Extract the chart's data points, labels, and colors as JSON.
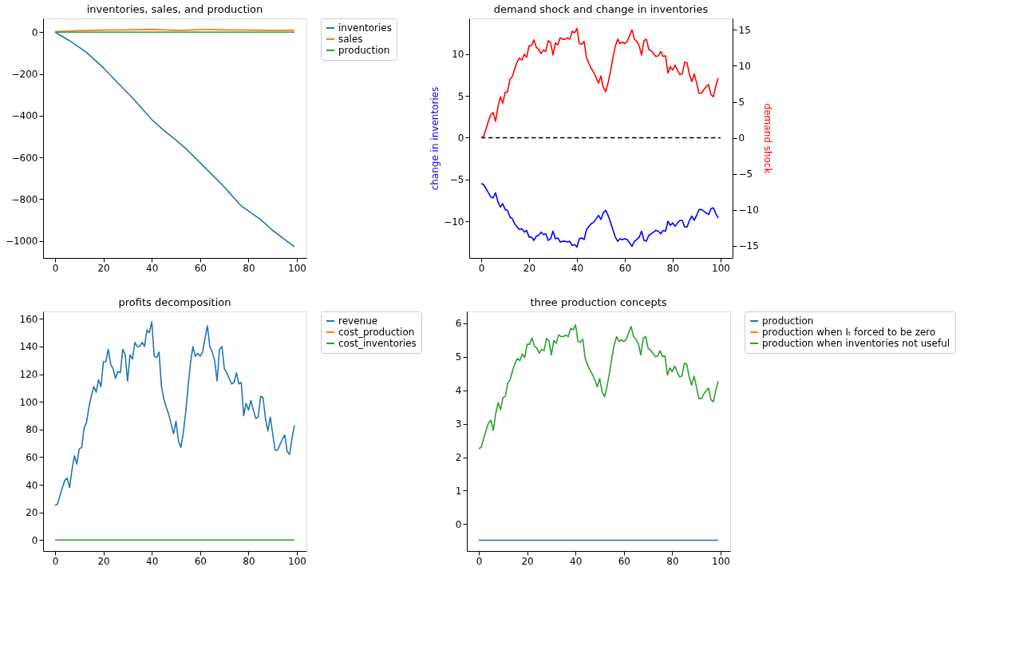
{
  "chart_data": [
    {
      "type": "line",
      "title": "inventories, sales, and production",
      "xlim": [
        -4.95,
        103.95
      ],
      "xticks": [
        0,
        20,
        40,
        60,
        80,
        100
      ],
      "ylim": [
        -1082,
        66
      ],
      "yticks": [
        -1000,
        -800,
        -600,
        -400,
        -200,
        0
      ],
      "grid": false,
      "legend": "top right",
      "marker": "none",
      "series": [
        {
          "name": "inventories",
          "color": "#1f77b4",
          "x": [
            0,
            6,
            13,
            20,
            26,
            32,
            40,
            45,
            50,
            54,
            56,
            62,
            69,
            77,
            85,
            90,
            99
          ],
          "values": [
            0,
            -41,
            -97,
            -171,
            -244,
            -315,
            -419,
            -471,
            -517,
            -557,
            -580,
            -649,
            -730,
            -833,
            -898,
            -950,
            -1029
          ]
        },
        {
          "name": "sales",
          "color": "#ff7f0e",
          "x": [
            0,
            10,
            20,
            30,
            40,
            50,
            52,
            60,
            63,
            70,
            80,
            90,
            99
          ],
          "values": [
            3,
            7,
            10,
            11,
            13,
            9,
            8,
            12,
            13,
            11,
            10,
            8,
            9
          ]
        },
        {
          "name": "production",
          "color": "#2ca02c",
          "x": [
            0,
            99
          ],
          "values": [
            0,
            0
          ]
        }
      ]
    },
    {
      "type": "line",
      "title": "demand shock and change in inventories",
      "ylabel": "change in inventories",
      "y2label": "demand shock",
      "xlim": [
        -5,
        105
      ],
      "xticks": [
        0,
        20,
        40,
        60,
        80,
        100
      ],
      "ylim": [
        -14.4,
        14.3
      ],
      "yticks": [
        -10,
        -5,
        0,
        5,
        10
      ],
      "y2lim": [
        -16.7,
        16.6
      ],
      "y2ticks": [
        -15,
        -10,
        -5,
        0,
        5,
        10,
        15
      ],
      "grid": false,
      "marker": "none",
      "x": [
        0,
        1,
        2,
        3,
        4,
        5,
        6,
        7,
        8,
        9,
        10,
        11,
        12,
        13,
        14,
        15,
        16,
        17,
        18,
        19,
        20,
        21,
        22,
        23,
        24,
        25,
        26,
        27,
        28,
        29,
        30,
        31,
        32,
        33,
        34,
        35,
        36,
        37,
        38,
        39,
        40,
        41,
        42,
        43,
        44,
        45,
        46,
        47,
        48,
        49,
        50,
        51,
        52,
        53,
        54,
        55,
        56,
        57,
        58,
        59,
        60,
        61,
        62,
        63,
        64,
        65,
        66,
        67,
        68,
        69,
        70,
        71,
        72,
        73,
        74,
        75,
        76,
        77,
        78,
        79,
        80,
        81,
        82,
        83,
        84,
        85,
        86,
        87,
        88,
        89,
        90,
        91,
        92,
        93,
        94,
        95,
        96,
        97,
        98,
        99
      ],
      "series": [
        {
          "color": "#0000ff",
          "values": [
            -5.5,
            -5.6,
            -6.1,
            -6.6,
            -7.1,
            -7.2,
            -6.6,
            -7.7,
            -8.3,
            -7.9,
            -8.6,
            -8.7,
            -9.5,
            -9.7,
            -10.3,
            -10.7,
            -11.0,
            -10.9,
            -11.3,
            -11.1,
            -11.9,
            -11.9,
            -12.3,
            -11.8,
            -11.7,
            -11.3,
            -11.6,
            -11.5,
            -12.3,
            -12.1,
            -11.2,
            -12.1,
            -12.0,
            -12.5,
            -12.4,
            -12.4,
            -12.5,
            -12.4,
            -12.9,
            -12.8,
            -13.1,
            -12.1,
            -12.0,
            -12.2,
            -11.0,
            -10.6,
            -10.3,
            -10.1,
            -9.7,
            -9.3,
            -9.8,
            -9.0,
            -8.7,
            -9.3,
            -10.1,
            -11.0,
            -11.9,
            -12.4,
            -12.1,
            -12.2,
            -12.1,
            -12.2,
            -12.6,
            -13.0,
            -12.4,
            -12.2,
            -11.9,
            -11.2,
            -12.3,
            -12.4,
            -11.7,
            -11.5,
            -11.3,
            -11.1,
            -11.2,
            -11.5,
            -11.1,
            -11.2,
            -10.0,
            -10.5,
            -10.2,
            -10.6,
            -10.2,
            -9.9,
            -9.9,
            -10.7,
            -10.7,
            -9.9,
            -9.4,
            -9.9,
            -9.3,
            -8.6,
            -8.6,
            -8.8,
            -9.0,
            -9.2,
            -8.5,
            -8.4,
            -9.1,
            -9.6
          ]
        },
        {
          "color": "#000000",
          "line_style": "dashed",
          "x": [
            0,
            100
          ],
          "values": [
            0,
            0
          ]
        },
        {
          "color": "#ff0000",
          "axis": "y2",
          "values": [
            0,
            0.2,
            1.2,
            2.3,
            3.2,
            3.5,
            2.3,
            4.3,
            5.7,
            4.8,
            6.3,
            6.4,
            8.1,
            8.5,
            9.6,
            10.5,
            11.1,
            10.8,
            11.6,
            11.2,
            12.8,
            12.8,
            13.6,
            12.6,
            12.3,
            11.7,
            12.2,
            12.0,
            13.5,
            13.2,
            11.5,
            13.2,
            12.9,
            13.9,
            13.7,
            13.7,
            13.9,
            13.7,
            14.8,
            14.6,
            15.2,
            13.1,
            13.0,
            13.4,
            11.1,
            10.3,
            9.6,
            9.1,
            8.4,
            7.6,
            8.6,
            7.0,
            6.4,
            7.6,
            9.2,
            11.1,
            12.7,
            13.7,
            13.1,
            13.3,
            13.1,
            13.4,
            14.2,
            15.0,
            13.7,
            13.4,
            12.8,
            11.5,
            13.5,
            13.7,
            12.3,
            12.1,
            11.7,
            11.3,
            11.4,
            12.0,
            11.3,
            11.4,
            9.0,
            9.9,
            9.4,
            10.1,
            9.4,
            8.8,
            8.9,
            10.5,
            10.4,
            8.8,
            7.8,
            8.9,
            7.6,
            6.2,
            6.2,
            6.7,
            7.1,
            7.4,
            6.0,
            5.7,
            7.2,
            8.3
          ]
        }
      ]
    },
    {
      "type": "line",
      "title": "profits decomposition",
      "xlim": [
        -4.95,
        103.95
      ],
      "xticks": [
        0,
        20,
        40,
        60,
        80,
        100
      ],
      "ylim": [
        -7.9,
        165.4
      ],
      "yticks": [
        0,
        20,
        40,
        60,
        80,
        100,
        120,
        140,
        160
      ],
      "grid": false,
      "legend": "top right",
      "marker": "none",
      "x": [
        0,
        1,
        2,
        3,
        4,
        5,
        6,
        7,
        8,
        9,
        10,
        11,
        12,
        13,
        14,
        15,
        16,
        17,
        18,
        19,
        20,
        21,
        22,
        23,
        24,
        25,
        26,
        27,
        28,
        29,
        30,
        31,
        32,
        33,
        34,
        35,
        36,
        37,
        38,
        39,
        40,
        41,
        42,
        43,
        44,
        45,
        46,
        47,
        48,
        49,
        50,
        51,
        52,
        53,
        54,
        55,
        56,
        57,
        58,
        59,
        60,
        61,
        62,
        63,
        64,
        65,
        66,
        67,
        68,
        69,
        70,
        71,
        72,
        73,
        74,
        75,
        76,
        77,
        78,
        79,
        80,
        81,
        82,
        83,
        84,
        85,
        86,
        87,
        88,
        89,
        90,
        91,
        92,
        93,
        94,
        95,
        96,
        97,
        98,
        99
      ],
      "series": [
        {
          "name": "revenue",
          "color": "#1f77b4",
          "values": [
            25,
            26,
            32,
            38,
            43,
            45,
            38,
            51,
            61,
            55,
            66,
            67,
            81,
            85,
            96,
            104,
            111,
            107,
            116,
            111,
            129,
            129,
            138,
            127,
            124,
            117,
            122,
            121,
            138,
            134,
            115,
            134,
            131,
            143,
            140,
            140,
            143,
            140,
            152,
            150,
            158,
            133,
            132,
            136,
            111,
            102,
            96,
            91,
            84,
            77,
            86,
            72,
            67,
            77,
            92,
            111,
            128,
            140,
            133,
            135,
            133,
            136,
            146,
            155,
            140,
            136,
            130,
            115,
            138,
            140,
            124,
            121,
            117,
            113,
            114,
            121,
            113,
            114,
            90,
            99,
            94,
            101,
            94,
            88,
            89,
            104,
            103,
            88,
            79,
            89,
            77,
            65,
            65,
            69,
            73,
            76,
            64,
            62,
            74,
            83
          ]
        },
        {
          "name": "cost_production",
          "color": "#ff7f0e",
          "values": [
            null,
            null,
            null,
            null,
            null,
            null,
            null,
            null,
            null,
            null,
            null,
            null,
            null,
            null,
            null,
            null,
            null,
            null,
            null,
            null,
            null,
            null,
            null,
            null,
            null,
            null,
            null,
            null,
            null,
            null,
            null,
            null,
            null,
            null,
            null,
            null,
            null,
            null,
            null,
            null,
            null,
            null,
            null,
            null,
            null,
            null,
            null,
            null,
            null,
            null,
            null,
            null,
            null,
            null,
            null,
            null,
            null,
            null,
            null,
            null,
            null,
            null,
            null,
            null,
            null,
            null,
            null,
            null,
            null,
            null,
            null,
            null,
            null,
            null,
            null,
            null,
            null,
            null,
            null,
            null,
            null,
            null,
            null,
            null,
            null,
            null,
            null,
            null,
            null,
            null,
            null,
            null,
            null,
            null,
            null,
            null,
            null,
            null,
            null,
            null
          ]
        },
        {
          "name": "cost_inventories",
          "color": "#2ca02c",
          "x": [
            0,
            99
          ],
          "values": [
            0,
            0
          ]
        }
      ]
    },
    {
      "type": "line",
      "title": "three production concepts",
      "xlim": [
        -4.95,
        103.95
      ],
      "xticks": [
        0,
        20,
        40,
        60,
        80,
        100
      ],
      "ylim": [
        -0.8,
        6.35
      ],
      "yticks": [
        0,
        1,
        2,
        3,
        4,
        5,
        6
      ],
      "grid": false,
      "legend": "top right",
      "marker": "none",
      "x": [
        0,
        1,
        2,
        3,
        4,
        5,
        6,
        7,
        8,
        9,
        10,
        11,
        12,
        13,
        14,
        15,
        16,
        17,
        18,
        19,
        20,
        21,
        22,
        23,
        24,
        25,
        26,
        27,
        28,
        29,
        30,
        31,
        32,
        33,
        34,
        35,
        36,
        37,
        38,
        39,
        40,
        41,
        42,
        43,
        44,
        45,
        46,
        47,
        48,
        49,
        50,
        51,
        52,
        53,
        54,
        55,
        56,
        57,
        58,
        59,
        60,
        61,
        62,
        63,
        64,
        65,
        66,
        67,
        68,
        69,
        70,
        71,
        72,
        73,
        74,
        75,
        76,
        77,
        78,
        79,
        80,
        81,
        82,
        83,
        84,
        85,
        86,
        87,
        88,
        89,
        90,
        91,
        92,
        93,
        94,
        95,
        96,
        97,
        98,
        99
      ],
      "series": [
        {
          "name": "production",
          "color": "#1f77b4",
          "x": [
            0,
            99
          ],
          "values": [
            -0.48,
            -0.48
          ]
        },
        {
          "name": "production when Iₜ forced to be zero",
          "color": "#ff7f0e",
          "values": [
            null,
            null,
            null,
            null,
            null,
            null,
            null,
            null,
            null,
            null,
            null,
            null,
            null,
            null,
            null,
            null,
            null,
            null,
            null,
            null,
            null,
            null,
            null,
            null,
            null,
            null,
            null,
            null,
            null,
            null,
            null,
            null,
            null,
            null,
            null,
            null,
            null,
            null,
            null,
            null,
            null,
            null,
            null,
            null,
            null,
            null,
            null,
            null,
            null,
            null,
            null,
            null,
            null,
            null,
            null,
            null,
            null,
            null,
            null,
            null,
            null,
            null,
            null,
            null,
            null,
            null,
            null,
            null,
            null,
            null,
            null,
            null,
            null,
            null,
            null,
            null,
            null,
            null,
            null,
            null,
            null,
            null,
            null,
            null,
            null,
            null,
            null,
            null,
            null,
            null,
            null,
            null,
            null,
            null,
            null,
            null,
            null,
            null,
            null,
            null
          ]
        },
        {
          "name": "production when inventories not useful",
          "color": "#2ca02c",
          "values": [
            2.25,
            2.3,
            2.55,
            2.8,
            3.02,
            3.1,
            2.8,
            3.3,
            3.63,
            3.42,
            3.78,
            3.82,
            4.22,
            4.32,
            4.6,
            4.8,
            4.95,
            4.88,
            5.08,
            4.97,
            5.37,
            5.37,
            5.56,
            5.32,
            5.25,
            5.1,
            5.22,
            5.18,
            5.55,
            5.47,
            5.05,
            5.48,
            5.4,
            5.65,
            5.6,
            5.6,
            5.65,
            5.6,
            5.85,
            5.8,
            5.95,
            5.45,
            5.43,
            5.52,
            4.95,
            4.75,
            4.6,
            4.47,
            4.3,
            4.1,
            4.35,
            3.95,
            3.8,
            4.1,
            4.5,
            4.95,
            5.35,
            5.6,
            5.45,
            5.5,
            5.45,
            5.52,
            5.72,
            5.9,
            5.6,
            5.52,
            5.38,
            5.05,
            5.55,
            5.6,
            5.25,
            5.2,
            5.1,
            5.0,
            5.02,
            5.18,
            5.0,
            5.02,
            4.45,
            4.67,
            4.55,
            4.72,
            4.55,
            4.4,
            4.42,
            4.8,
            4.78,
            4.4,
            4.15,
            4.42,
            4.1,
            3.75,
            3.75,
            3.88,
            3.98,
            4.06,
            3.72,
            3.65,
            4.0,
            4.27
          ]
        }
      ]
    }
  ]
}
